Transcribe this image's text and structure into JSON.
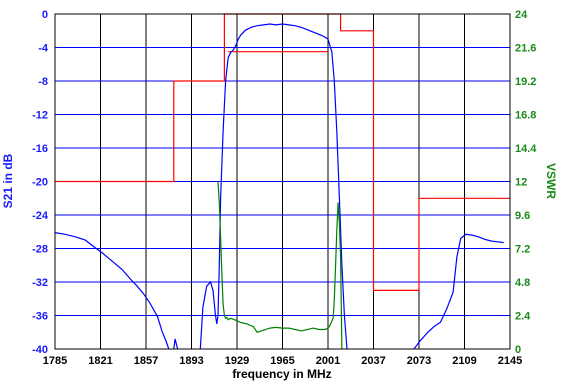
{
  "chart_data": {
    "type": "line",
    "xlabel": "frequency in MHz",
    "ylabel_left": "S21 in dB",
    "ylabel_right": "VSWR",
    "xlim": [
      1785,
      2145
    ],
    "ylim_left": [
      -40,
      0
    ],
    "ylim_right": [
      0,
      24
    ],
    "grid": true,
    "x_ticks": [
      "1785",
      "1821",
      "1857",
      "1893",
      "1929",
      "1965",
      "2001",
      "2037",
      "2073",
      "2109",
      "2145"
    ],
    "y_left_ticks": [
      "0",
      "-4",
      "-8",
      "-12",
      "-16",
      "-20",
      "-24",
      "-28",
      "-32",
      "-36",
      "-40"
    ],
    "y_right_ticks": [
      "24",
      "21.6",
      "19.2",
      "16.8",
      "14.4",
      "12",
      "9.6",
      "7.2",
      "4.8",
      "2.4",
      "0"
    ],
    "colors": {
      "s21": "#0000ff",
      "vswr": "#008000",
      "mask": "#ff0000",
      "grid": "#000000"
    },
    "series": [
      {
        "axis": "left",
        "color": "#0000ff",
        "x": [
          1785,
          1793,
          1801,
          1809,
          1815,
          1823,
          1831,
          1838,
          1845,
          1850,
          1855,
          1860,
          1866,
          1870,
          1873,
          1875
        ],
        "y": [
          -26.1,
          -26.3,
          -26.6,
          -27.0,
          -27.7,
          -28.6,
          -29.6,
          -30.5,
          -31.7,
          -32.5,
          -33.4,
          -34.5,
          -36.1,
          -38.0,
          -39.1,
          -40.0
        ]
      },
      {
        "axis": "left",
        "color": "#0000ff",
        "x": [
          1879,
          1880,
          1882
        ],
        "y": [
          -40.0,
          -38.8,
          -40.0
        ]
      },
      {
        "axis": "left",
        "color": "#0000ff",
        "x": [
          1900,
          1902,
          1905,
          1908,
          1910,
          1912,
          1913,
          1914,
          1915,
          1916,
          1918,
          1920,
          1922,
          1924,
          1926,
          1928,
          1930,
          1932,
          1936,
          1940,
          1945,
          1950,
          1955,
          1960,
          1965,
          1970,
          1975,
          1980,
          1985,
          1990,
          1995,
          1998,
          2001,
          2004,
          2006,
          2008,
          2010,
          2012,
          2014,
          2016
        ],
        "y": [
          -40.0,
          -35.0,
          -32.5,
          -32.0,
          -33.0,
          -36.0,
          -37.0,
          -36.0,
          -30.0,
          -22.0,
          -14.0,
          -8.0,
          -5.2,
          -4.6,
          -4.3,
          -3.8,
          -3.0,
          -2.5,
          -1.9,
          -1.6,
          -1.4,
          -1.3,
          -1.2,
          -1.3,
          -1.2,
          -1.3,
          -1.4,
          -1.6,
          -1.9,
          -2.2,
          -2.5,
          -2.7,
          -3.0,
          -4.5,
          -8.0,
          -14.0,
          -22.0,
          -30.0,
          -36.0,
          -40.0
        ]
      },
      {
        "axis": "left",
        "color": "#0000ff",
        "x": [
          2069,
          2074,
          2080,
          2085,
          2090,
          2095,
          2100,
          2103,
          2106,
          2110,
          2115,
          2120,
          2125,
          2130,
          2135,
          2140
        ],
        "y": [
          -40.0,
          -39.0,
          -38.0,
          -37.3,
          -36.8,
          -35.2,
          -33.2,
          -29.0,
          -26.8,
          -26.3,
          -26.4,
          -26.6,
          -26.9,
          -27.1,
          -27.2,
          -27.3
        ]
      },
      {
        "axis": "right",
        "color": "#008000",
        "x": [
          1914,
          1915,
          1916,
          1917,
          1918,
          1919,
          1920,
          1921,
          1922,
          1924,
          1927,
          1932,
          1937,
          1942,
          1945,
          1950,
          1955,
          1960,
          1965,
          1970,
          1975,
          1980,
          1985,
          1989,
          1994,
          1999,
          2002,
          2005,
          2006,
          2007,
          2008,
          2009,
          2010,
          2011,
          2012
        ],
        "y": [
          12.0,
          10.5,
          8.0,
          5.5,
          3.2,
          2.4,
          2.2,
          2.25,
          2.1,
          2.2,
          2.1,
          1.9,
          1.8,
          1.6,
          1.2,
          1.35,
          1.5,
          1.55,
          1.5,
          1.5,
          1.4,
          1.3,
          1.4,
          1.5,
          1.4,
          1.4,
          1.6,
          2.2,
          3.5,
          6.0,
          8.5,
          10.5,
          9.0,
          6.5,
          0.0
        ]
      }
    ],
    "mask_upper": {
      "axis": "left",
      "color": "#ff0000",
      "x": [
        1785,
        1879,
        1879,
        1919,
        1919,
        2011,
        2011,
        2037,
        2037,
        2073,
        2073,
        2145
      ],
      "y": [
        -20,
        -20,
        -8,
        -8,
        0,
        0,
        -2,
        -2,
        -33,
        -33,
        -22,
        -22
      ]
    },
    "mask_lower": {
      "axis": "left",
      "color": "#ff0000",
      "x": [
        1922,
        2001
      ],
      "y": [
        -4.5,
        -4.5
      ]
    }
  }
}
